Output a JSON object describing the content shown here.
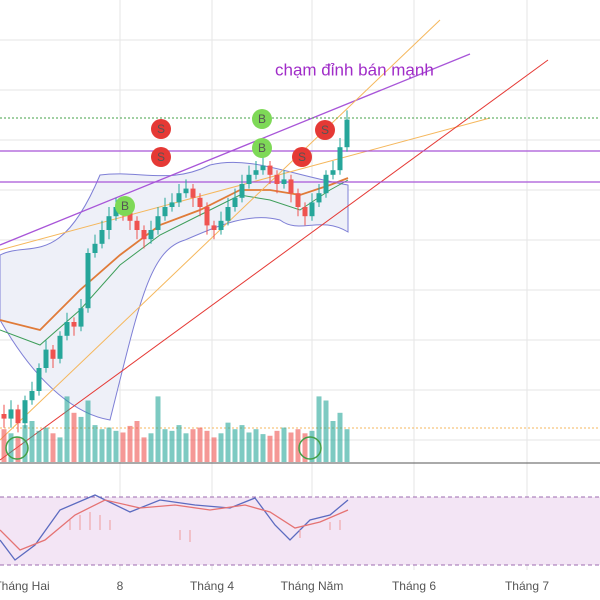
{
  "chart_data": {
    "type": "candlestick",
    "annotation": "chạm đỉnh bán mạnh",
    "x_labels": [
      "Tháng Hai",
      "8",
      "Tháng 4",
      "Tháng Năm",
      "Tháng 6",
      "Tháng 7"
    ],
    "markers": [
      {
        "label": "S"
      },
      {
        "label": "S"
      },
      {
        "label": "B"
      },
      {
        "label": "B"
      },
      {
        "label": "B"
      },
      {
        "label": "S"
      },
      {
        "label": "S"
      }
    ],
    "ylim": [
      0,
      100
    ],
    "up_color": "#26a69a",
    "down_color": "#ef5350",
    "open": [
      10,
      9,
      11,
      8,
      13,
      15,
      20,
      24,
      22,
      27,
      30,
      29,
      33,
      45,
      47,
      50,
      53,
      55,
      54,
      52,
      50,
      48,
      50,
      53,
      55,
      56,
      58,
      59,
      57,
      55,
      51,
      50,
      52,
      55,
      57,
      60,
      62,
      63,
      64,
      62,
      60,
      61,
      58,
      55,
      53,
      56,
      58,
      62,
      63,
      68
    ],
    "high": [
      12,
      13,
      12,
      14,
      17,
      21,
      26,
      25,
      28,
      32,
      31,
      35,
      46,
      49,
      52,
      55,
      57,
      57,
      55,
      53,
      51,
      52,
      55,
      57,
      58,
      60,
      61,
      60,
      58,
      56,
      52,
      54,
      57,
      59,
      62,
      64,
      65,
      66,
      65,
      63,
      63,
      62,
      59,
      56,
      58,
      60,
      63,
      65,
      70,
      76
    ],
    "low": [
      7,
      7,
      6,
      7,
      12,
      14,
      19,
      20,
      21,
      26,
      27,
      28,
      32,
      44,
      46,
      48,
      52,
      52,
      50,
      48,
      46,
      47,
      49,
      52,
      54,
      55,
      57,
      55,
      53,
      49,
      48,
      49,
      51,
      54,
      56,
      59,
      61,
      62,
      60,
      58,
      59,
      56,
      53,
      51,
      52,
      55,
      57,
      61,
      62,
      67
    ],
    "close": [
      9,
      11,
      8,
      13,
      15,
      20,
      24,
      22,
      27,
      30,
      29,
      33,
      45,
      47,
      50,
      53,
      55,
      54,
      52,
      50,
      48,
      50,
      53,
      55,
      56,
      58,
      59,
      57,
      55,
      51,
      50,
      52,
      55,
      57,
      60,
      62,
      63,
      64,
      62,
      60,
      61,
      58,
      55,
      53,
      56,
      58,
      62,
      63,
      68,
      74
    ],
    "volume_ylim": [
      0,
      100
    ],
    "volume": [
      40,
      35,
      30,
      45,
      50,
      38,
      42,
      35,
      30,
      80,
      60,
      55,
      75,
      45,
      40,
      42,
      38,
      36,
      44,
      50,
      30,
      35,
      80,
      40,
      38,
      45,
      35,
      40,
      42,
      38,
      30,
      35,
      48,
      40,
      45,
      36,
      40,
      34,
      32,
      38,
      42,
      36,
      40,
      35,
      38,
      80,
      75,
      50,
      60,
      40
    ]
  }
}
